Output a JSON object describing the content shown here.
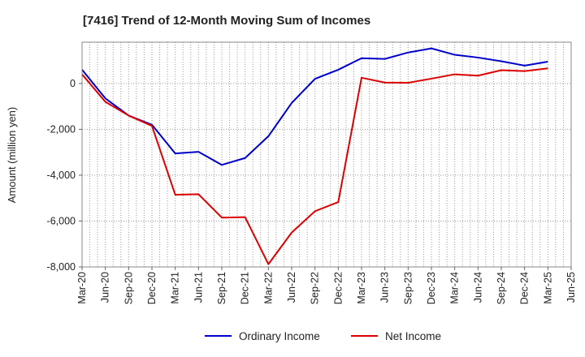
{
  "chart_data": {
    "type": "line",
    "title": "[7416]  Trend of 12-Month Moving Sum of Incomes",
    "xlabel": "",
    "ylabel": "Amount (million yen)",
    "ylim": [
      -8000,
      1800
    ],
    "yticks": [
      0,
      -2000,
      -4000,
      -6000,
      -8000
    ],
    "ytick_labels": [
      "0",
      "-2,000",
      "-4,000",
      "-6,000",
      "-8,000"
    ],
    "x_labels": [
      "Mar-20",
      "Jun-20",
      "Sep-20",
      "Dec-20",
      "Mar-21",
      "Jun-21",
      "Sep-21",
      "Dec-21",
      "Mar-22",
      "Jun-22",
      "Sep-22",
      "Dec-22",
      "Mar-23",
      "Jun-23",
      "Sep-23",
      "Dec-23",
      "Mar-24",
      "Jun-24",
      "Sep-24",
      "Dec-24",
      "Mar-25",
      "Jun-25"
    ],
    "grid": true,
    "legend_position": "bottom-center",
    "series": [
      {
        "name": "Ordinary Income",
        "color": "#0000cc",
        "values": [
          600,
          -650,
          -1400,
          -1800,
          -3050,
          -2980,
          -3550,
          -3250,
          -2300,
          -850,
          200,
          600,
          1100,
          1070,
          1350,
          1530,
          1250,
          1130,
          970,
          780,
          950
        ]
      },
      {
        "name": "Net Income",
        "color": "#dd0000",
        "values": [
          400,
          -800,
          -1400,
          -1850,
          -4850,
          -4830,
          -5850,
          -5830,
          -7880,
          -6500,
          -5570,
          -5170,
          250,
          40,
          30,
          210,
          400,
          340,
          580,
          540,
          660
        ]
      }
    ]
  }
}
